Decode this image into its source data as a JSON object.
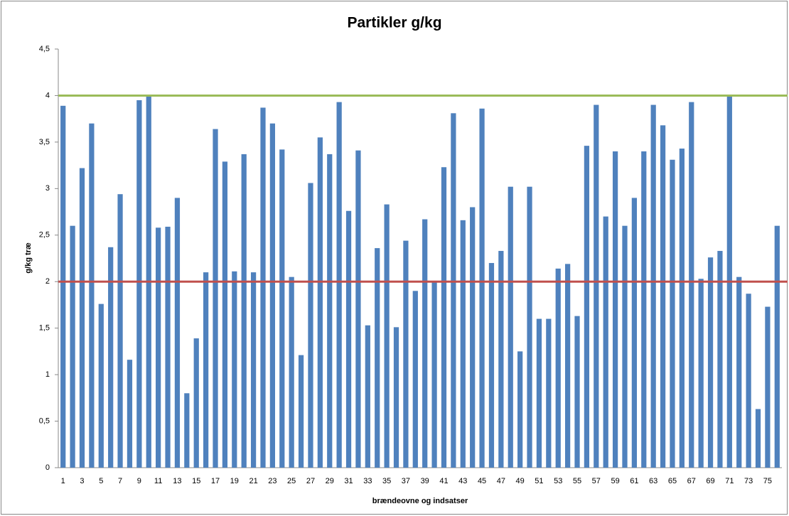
{
  "chart_data": {
    "type": "bar",
    "title": "Partikler g/kg",
    "x_label": "brændeovne og indsatser",
    "y_label": "g/kg træ",
    "categories": [
      "1",
      null,
      "3",
      null,
      "5",
      null,
      "7",
      null,
      "9",
      null,
      "11",
      null,
      "13",
      null,
      "15",
      null,
      "17",
      null,
      "19",
      null,
      "21",
      null,
      "23",
      null,
      "25",
      null,
      "27",
      null,
      "29",
      null,
      "31",
      null,
      "33",
      null,
      "35",
      null,
      "37",
      null,
      "39",
      null,
      "41",
      null,
      "43",
      null,
      "45",
      null,
      "47",
      null,
      "49",
      null,
      "51",
      null,
      "53",
      null,
      "55",
      null,
      "57",
      null,
      "59",
      null,
      "61",
      null,
      "63",
      null,
      "65",
      null,
      "67",
      null,
      "69",
      null,
      "71",
      null,
      "73",
      null,
      "75",
      null
    ],
    "values": [
      3.89,
      2.6,
      3.22,
      3.7,
      1.76,
      2.37,
      2.94,
      1.16,
      3.95,
      3.99,
      2.58,
      2.59,
      2.9,
      0.8,
      1.39,
      2.1,
      3.64,
      3.29,
      2.11,
      3.37,
      2.1,
      3.87,
      3.7,
      3.42,
      2.05,
      1.21,
      3.06,
      3.55,
      3.37,
      3.93,
      2.76,
      3.41,
      1.53,
      2.36,
      2.83,
      1.51,
      2.44,
      1.9,
      2.67,
      2.0,
      3.23,
      3.81,
      2.66,
      2.8,
      3.86,
      2.2,
      2.33,
      3.02,
      1.25,
      3.02,
      1.6,
      1.6,
      2.14,
      2.19,
      1.63,
      3.46,
      3.9,
      2.7,
      3.4,
      2.6,
      2.9,
      3.4,
      3.9,
      3.68,
      3.31,
      3.43,
      3.93,
      2.03,
      2.26,
      2.33,
      4.0,
      2.05,
      1.87,
      0.63,
      1.73,
      2.6
    ],
    "color": "#4f81bd",
    "ylim": [
      0,
      4.5
    ],
    "yticks": [
      0,
      {
        "value": 0.5,
        "label": "0,5"
      },
      1,
      {
        "value": 1.5,
        "label": "1,5"
      },
      2,
      {
        "value": 2.5,
        "label": "2,5"
      },
      3,
      {
        "value": 3.5,
        "label": "3,5"
      },
      4,
      {
        "value": 4.5,
        "label": "4,5"
      }
    ],
    "grid": false,
    "reference_lines": [
      {
        "value": 4,
        "color": "#9bbb59"
      },
      {
        "value": 2,
        "color": "#c0504d"
      }
    ]
  }
}
